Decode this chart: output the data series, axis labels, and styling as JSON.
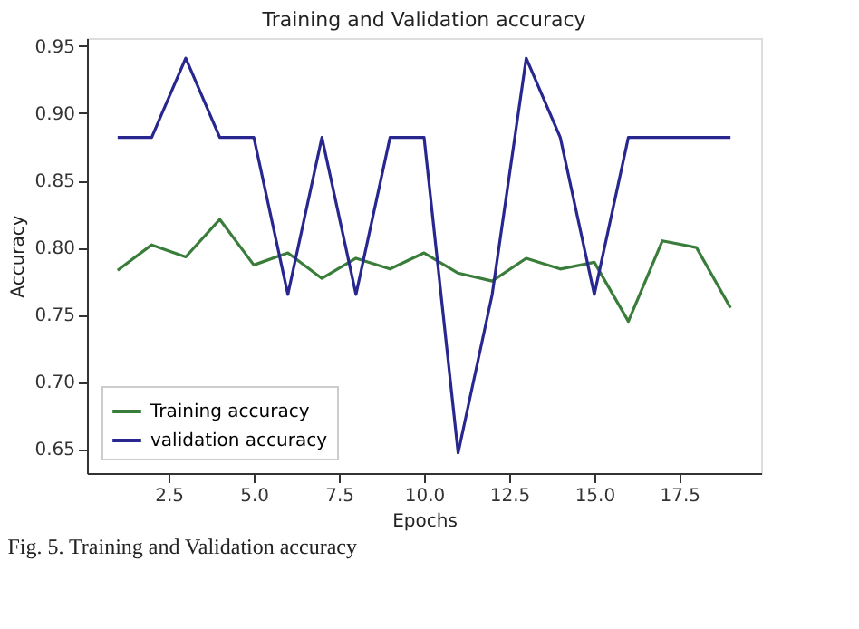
{
  "chart_data": {
    "type": "line",
    "title": "Training and Validation accuracy",
    "xlabel": "Epochs",
    "ylabel": "Accuracy",
    "x": [
      1,
      2,
      3,
      4,
      5,
      6,
      7,
      8,
      9,
      10,
      11,
      12,
      13,
      14,
      15,
      16,
      17,
      18,
      19
    ],
    "series": [
      {
        "name": "Training accuracy",
        "color": "#3a7d3a",
        "values": [
          0.783,
          0.802,
          0.793,
          0.821,
          0.787,
          0.796,
          0.777,
          0.792,
          0.784,
          0.796,
          0.781,
          0.775,
          0.792,
          0.784,
          0.789,
          0.745,
          0.805,
          0.8,
          0.755
        ]
      },
      {
        "name": "validation accuracy",
        "color": "#27278f",
        "values": [
          0.882,
          0.882,
          0.941,
          0.882,
          0.882,
          0.765,
          0.882,
          0.765,
          0.882,
          0.882,
          0.647,
          0.765,
          0.941,
          0.882,
          0.765,
          0.882,
          0.882,
          0.882,
          0.882
        ]
      }
    ],
    "xlim": [
      0.1,
      19.9
    ],
    "xticks": [
      2.5,
      {
        "value": 5,
        "label": "5.0"
      },
      7.5,
      {
        "value": 10,
        "label": "10.0"
      },
      12.5,
      {
        "value": 15,
        "label": "15.0"
      },
      17.5
    ],
    "ylim": [
      0.632,
      0.956
    ],
    "yticks": [
      0.65,
      {
        "value": 0.7,
        "label": "0.70"
      },
      0.75,
      {
        "value": 0.8,
        "label": "0.80"
      },
      0.85,
      {
        "value": 0.9,
        "label": "0.90"
      },
      0.95
    ],
    "grid": false,
    "legend": "bottom left",
    "line_style": "solid",
    "marker": "none",
    "annotations": [
      "Fig. 5.   Training and Validation accuracy"
    ]
  }
}
